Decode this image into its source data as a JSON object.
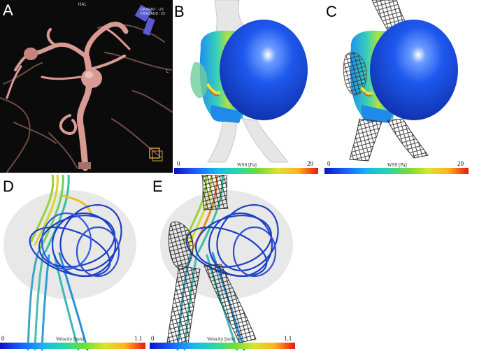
{
  "panels": {
    "a": {
      "label": "A",
      "header": "HAL",
      "orientation_1": "LAO/RAO : -25",
      "orientation_2": "CRA/CAUD : 23",
      "side_marker": "L"
    },
    "b": {
      "label": "B",
      "scale_min": "0",
      "scale_title": "WSS [Pa]",
      "scale_max": "20"
    },
    "c": {
      "label": "C",
      "scale_min": "0",
      "scale_title": "WSS [Pa]",
      "scale_max": "20"
    },
    "d": {
      "label": "D",
      "scale_min": "0",
      "scale_title": "Velocity [m/s]",
      "scale_max": "1.1"
    },
    "e": {
      "label": "E",
      "scale_min": "0",
      "scale_title": "Velocity [m/s]",
      "scale_max": "1.1"
    }
  },
  "colors": {
    "vessel_pink": "#d99a94",
    "aneurysm_blue": "#1d55e6",
    "stent_dark": "#222222"
  }
}
